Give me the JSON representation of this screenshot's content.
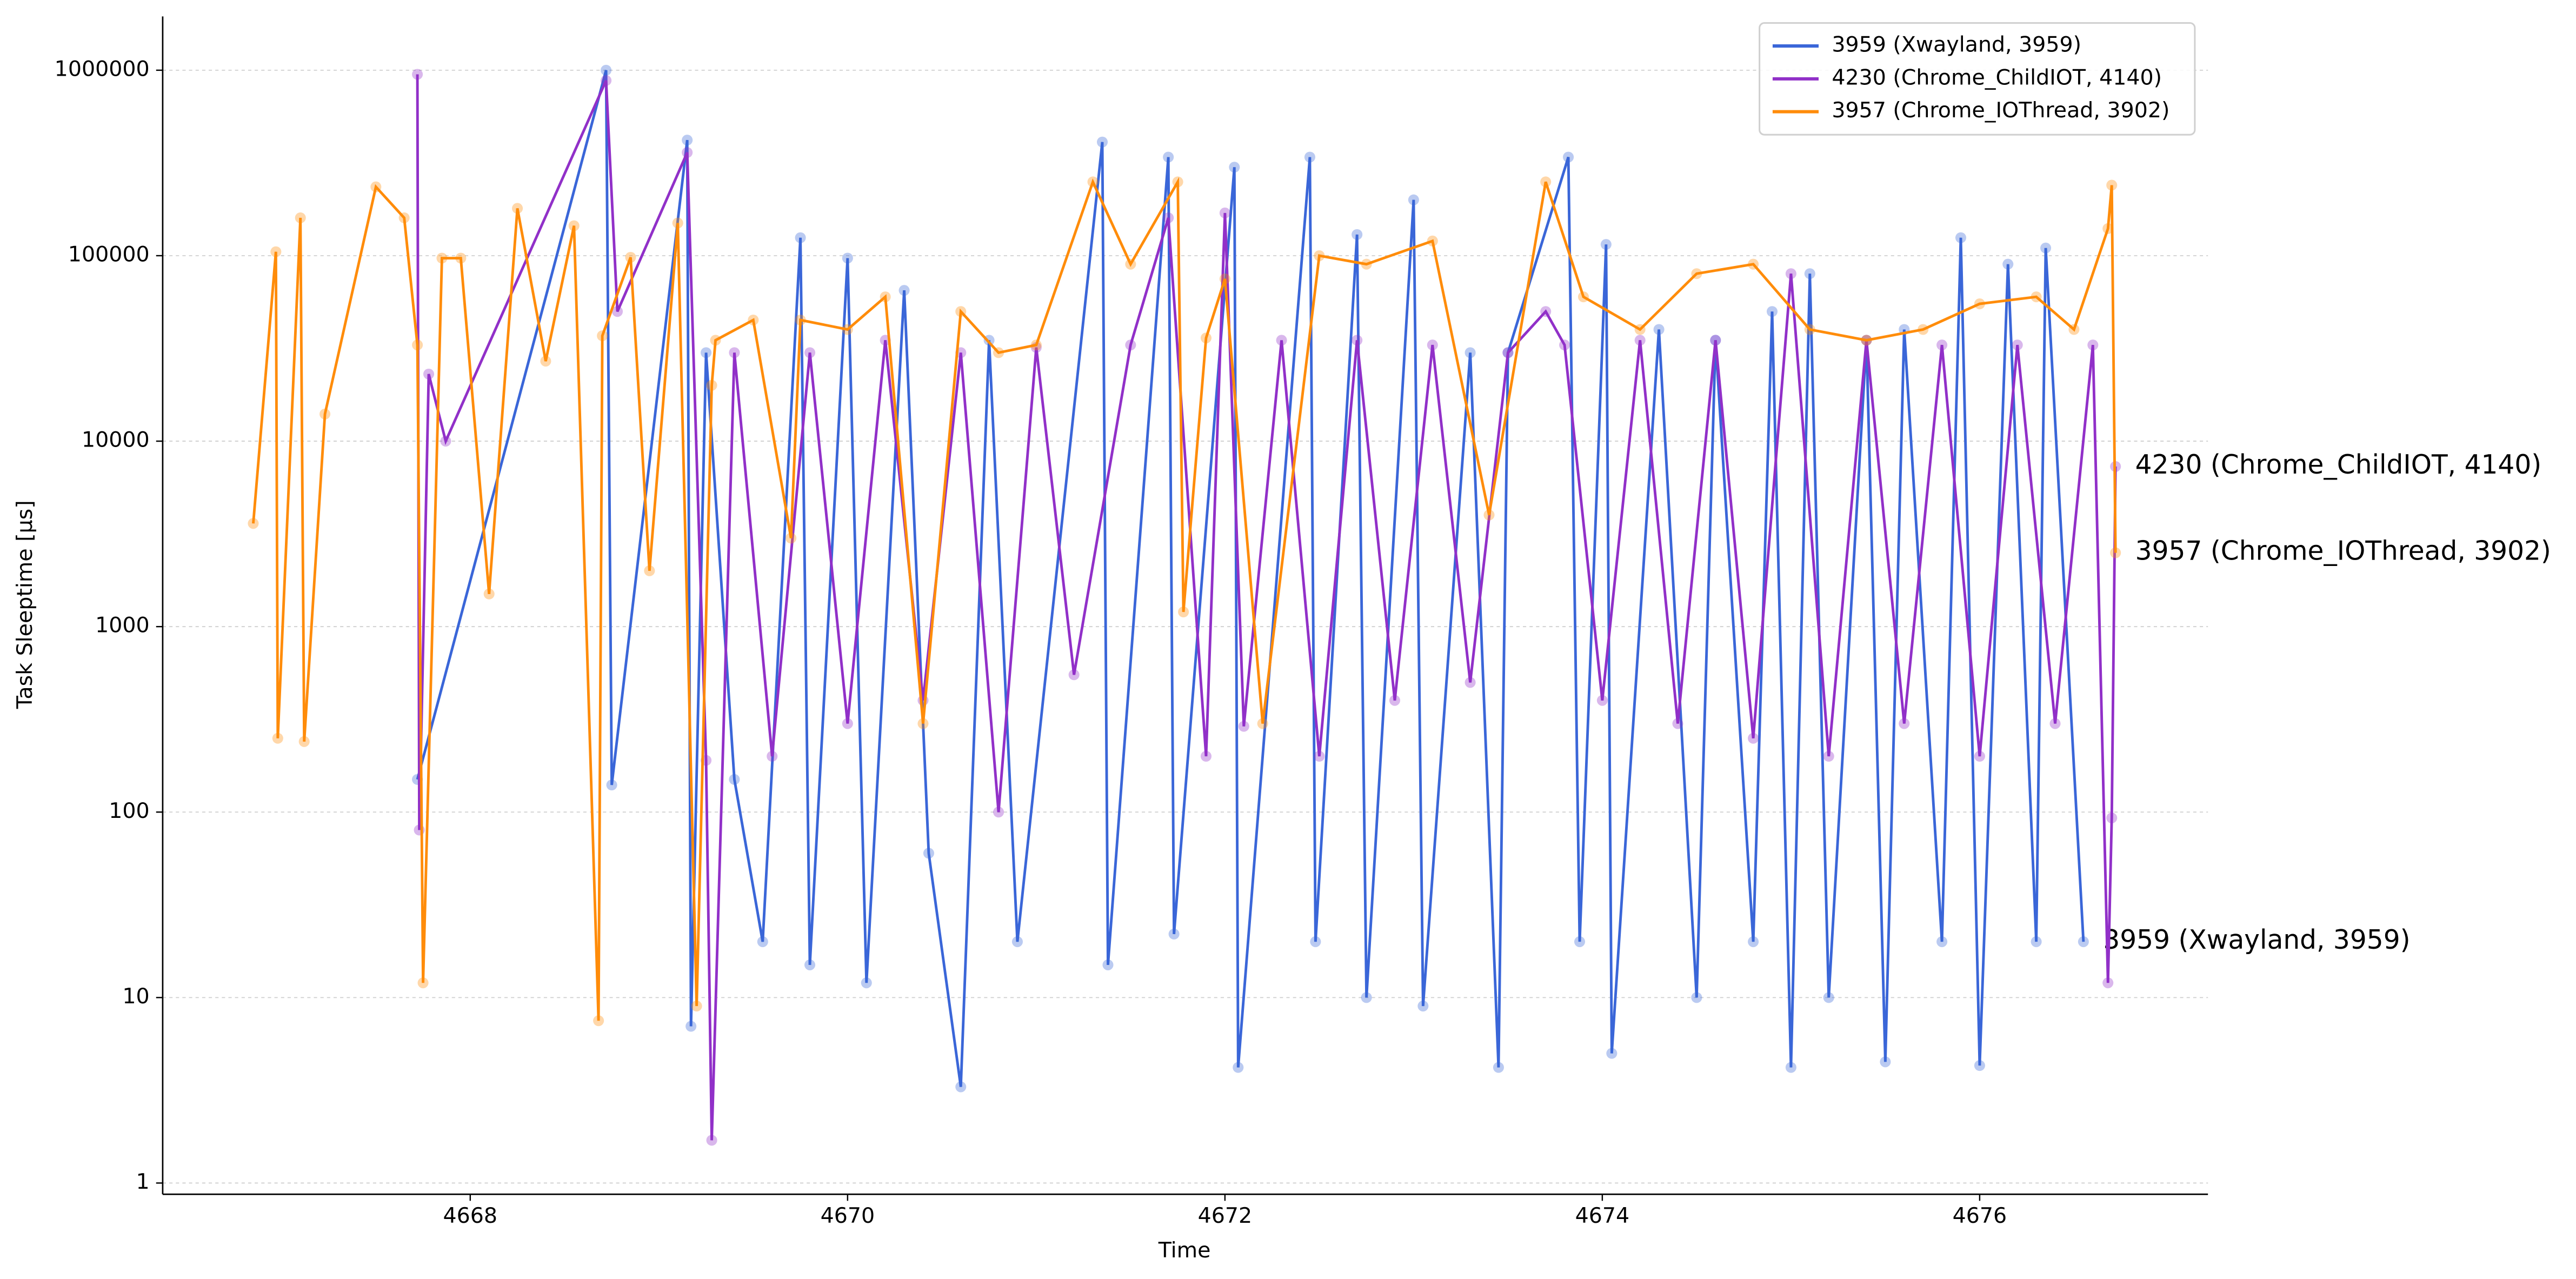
{
  "chart_data": {
    "type": "line",
    "x_label": "Time",
    "y_label": "Task Sleeptime [µs]",
    "log_y": true,
    "grid": true,
    "legend": "upper right",
    "end_labels": true,
    "markers": true,
    "xlim": [
      4666.37,
      4677.21
    ],
    "ylim": [
      0.87,
      1950000
    ],
    "xticks": [
      4668,
      4670,
      4672,
      4674,
      4676
    ],
    "yticks": [
      1,
      10,
      100,
      1000,
      10000,
      100000,
      1000000
    ],
    "series": [
      {
        "name": "3959 (Xwayland, 3959)",
        "color": "#3a66d8",
        "x": [
          4667.72,
          4668.72,
          4668.75,
          4669.15,
          4669.17,
          4669.25,
          4669.4,
          4669.55,
          4669.75,
          4669.8,
          4670.0,
          4670.1,
          4670.3,
          4670.43,
          4670.6,
          4670.75,
          4670.9,
          4671.35,
          4671.38,
          4671.7,
          4671.73,
          4672.05,
          4672.07,
          4672.45,
          4672.48,
          4672.7,
          4672.75,
          4673.0,
          4673.05,
          4673.3,
          4673.45,
          4673.5,
          4673.82,
          4673.88,
          4674.02,
          4674.05,
          4674.3,
          4674.5,
          4674.6,
          4674.8,
          4674.9,
          4675.0,
          4675.1,
          4675.2,
          4675.4,
          4675.5,
          4675.6,
          4675.8,
          4675.9,
          4676.0,
          4676.15,
          4676.3,
          4676.35,
          4676.55
        ],
        "values": [
          150,
          1000000,
          140,
          420000,
          7,
          30000,
          150,
          20,
          125000,
          15,
          97000,
          12,
          65000,
          60,
          3.3,
          35000,
          20,
          410000,
          15,
          340000,
          22,
          300000,
          4.2,
          340000,
          20,
          130000,
          10,
          200000,
          9,
          30000,
          4.2,
          30000,
          340000,
          20,
          115000,
          5,
          40000,
          10,
          35000,
          20,
          50000,
          4.2,
          80000,
          10,
          35000,
          4.5,
          40000,
          20,
          125000,
          4.3,
          90000,
          20,
          110000,
          20
        ]
      },
      {
        "name": "4230 (Chrome_ChildIOT, 4140)",
        "color": "#9130c8",
        "x": [
          4667.72,
          4667.73,
          4667.78,
          4667.87,
          4668.72,
          4668.78,
          4669.15,
          4669.25,
          4669.28,
          4669.4,
          4669.6,
          4669.8,
          4670.0,
          4670.2,
          4670.4,
          4670.6,
          4670.8,
          4671.0,
          4671.2,
          4671.5,
          4671.7,
          4671.9,
          4672.0,
          4672.1,
          4672.3,
          4672.5,
          4672.7,
          4672.9,
          4673.1,
          4673.3,
          4673.5,
          4673.7,
          4673.8,
          4674.0,
          4674.2,
          4674.4,
          4674.6,
          4674.8,
          4675.0,
          4675.2,
          4675.4,
          4675.6,
          4675.8,
          4676.0,
          4676.2,
          4676.4,
          4676.6,
          4676.68,
          4676.7,
          4676.72
        ],
        "values": [
          950000,
          80,
          23000,
          10000,
          880000,
          50000,
          360000,
          190,
          1.7,
          30000,
          200,
          30000,
          300,
          35000,
          400,
          30000,
          100,
          32000,
          550,
          33000,
          160000,
          200,
          170000,
          290,
          35000,
          200,
          35000,
          400,
          33000,
          500,
          30000,
          50000,
          33000,
          400,
          35000,
          300,
          35000,
          250,
          80000,
          200,
          35000,
          300,
          33000,
          200,
          33000,
          300,
          33000,
          12,
          93,
          7300
        ]
      },
      {
        "name": "3957 (Chrome_IOThread, 3902)",
        "color": "#ff8c0a",
        "x": [
          4666.85,
          4666.97,
          4666.98,
          4667.1,
          4667.12,
          4667.23,
          4667.5,
          4667.65,
          4667.72,
          4667.75,
          4667.85,
          4667.95,
          4668.1,
          4668.25,
          4668.4,
          4668.55,
          4668.68,
          4668.7,
          4668.85,
          4668.95,
          4669.1,
          4669.2,
          4669.28,
          4669.3,
          4669.5,
          4669.7,
          4669.75,
          4670.0,
          4670.2,
          4670.4,
          4670.6,
          4670.8,
          4671.0,
          4671.3,
          4671.5,
          4671.75,
          4671.78,
          4671.9,
          4672.0,
          4672.2,
          4672.5,
          4672.75,
          4673.1,
          4673.4,
          4673.7,
          4673.9,
          4674.2,
          4674.5,
          4674.8,
          4675.1,
          4675.4,
          4675.7,
          4676.0,
          4676.3,
          4676.5,
          4676.68,
          4676.7,
          4676.72
        ],
        "values": [
          3600,
          105000,
          250,
          160000,
          240,
          14000,
          235000,
          160000,
          33000,
          12,
          97000,
          97000,
          1500,
          180000,
          27000,
          145000,
          7.5,
          37000,
          98000,
          2000,
          150000,
          9,
          20000,
          35000,
          45000,
          3000,
          45000,
          40000,
          60000,
          300,
          50000,
          30000,
          33000,
          250000,
          90000,
          250000,
          1200,
          36000,
          75000,
          300,
          100000,
          90000,
          120000,
          4000,
          250000,
          60000,
          40000,
          80000,
          90000,
          40000,
          35000,
          40000,
          55000,
          60000,
          40000,
          140000,
          240000,
          2500
        ]
      }
    ]
  }
}
